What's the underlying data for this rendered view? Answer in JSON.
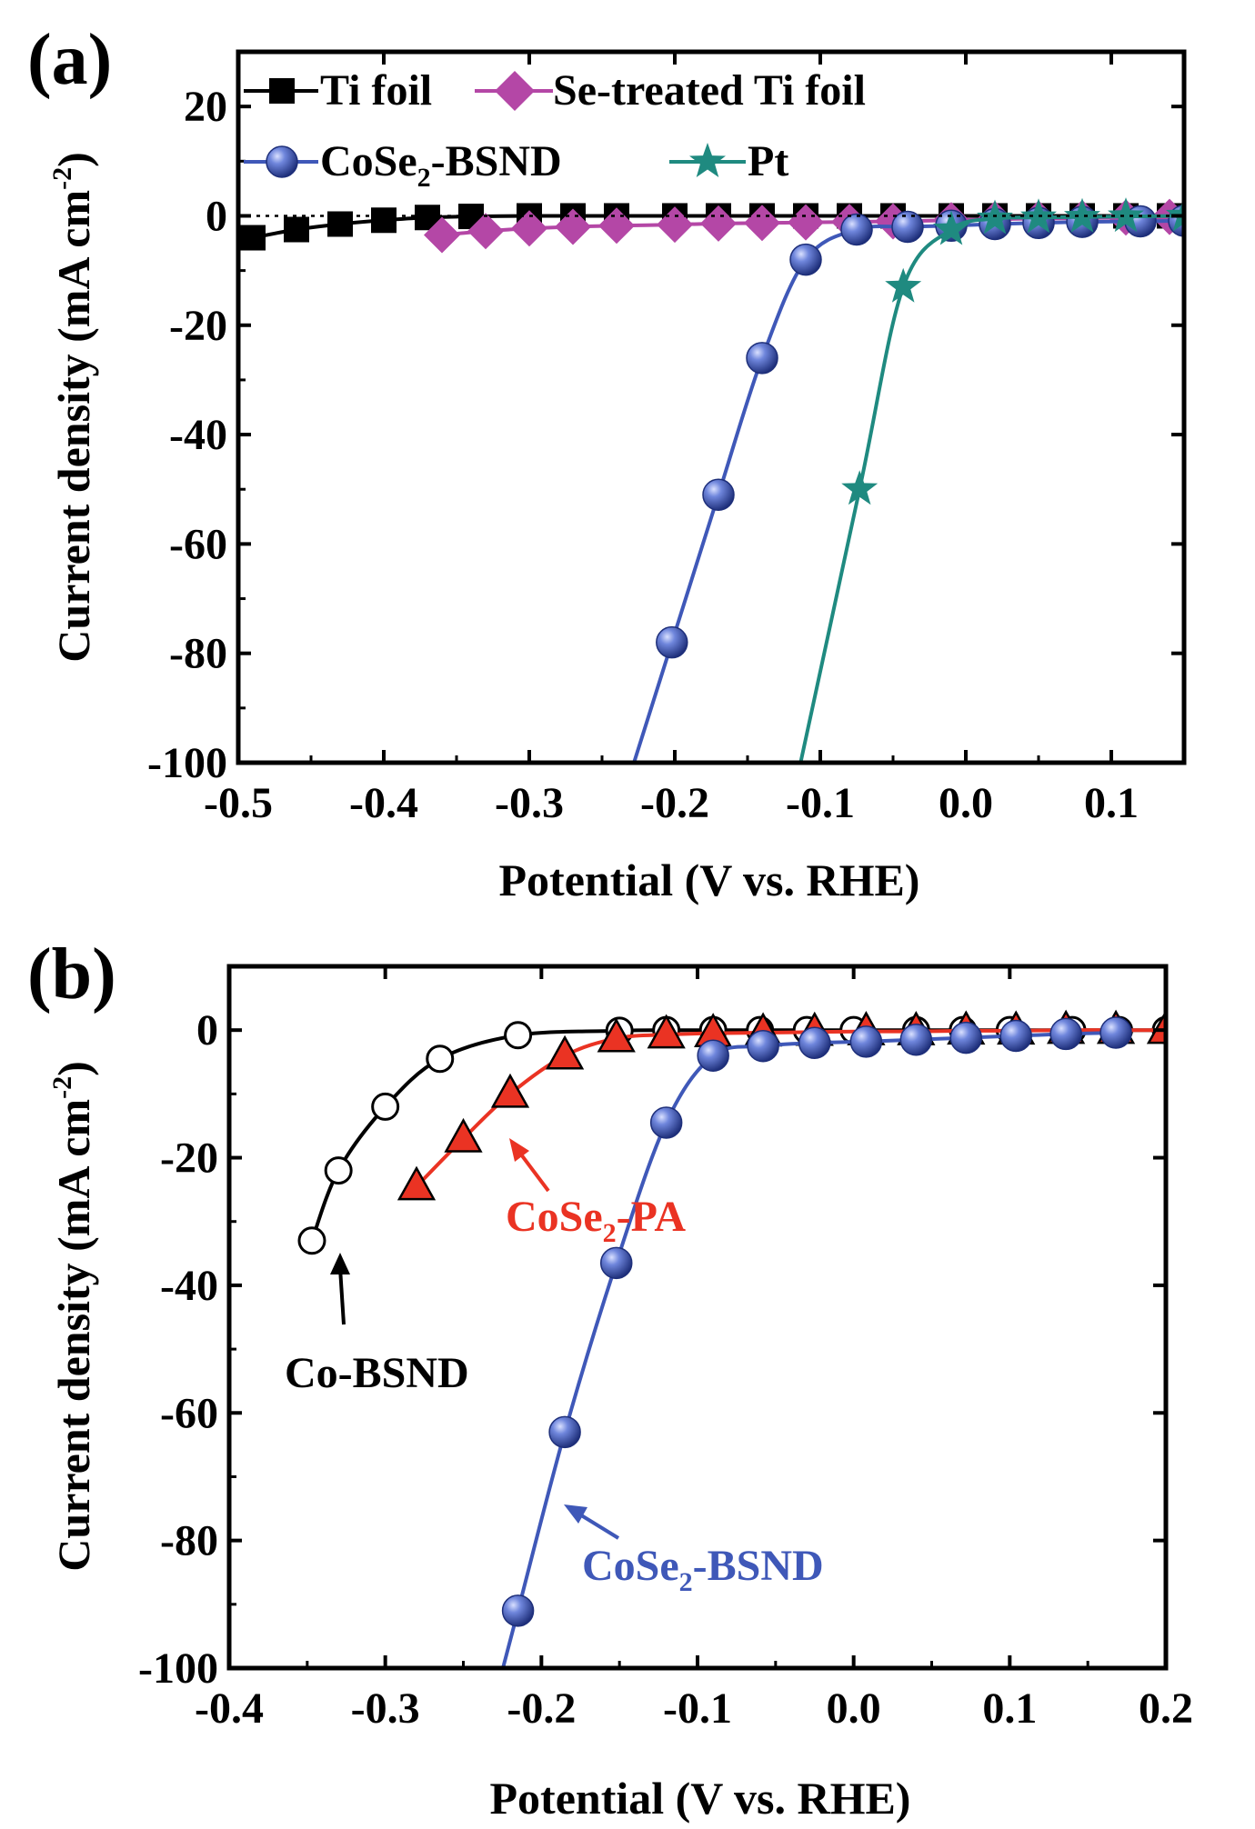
{
  "chart_data": [
    {
      "panel_label": "(a)",
      "type": "line",
      "xlabel": "Potential (V vs. RHE)",
      "ylabel": "Current density (mA cm",
      "ylabel_sup": "-2",
      "ylabel_close": ")",
      "xlim": [
        -0.5,
        0.15
      ],
      "ylim": [
        -100,
        30
      ],
      "xticks": [
        -0.5,
        -0.4,
        -0.3,
        -0.2,
        -0.1,
        0.0,
        0.1
      ],
      "xtick_labels": [
        "-0.5",
        "-0.4",
        "-0.3",
        "-0.2",
        "-0.1",
        "0.0",
        "0.1"
      ],
      "yticks": [
        20,
        0,
        -20,
        -40,
        -60,
        -80,
        -100
      ],
      "ytick_labels": [
        "20",
        "0",
        "-20",
        "-40",
        "-60",
        "-80",
        "-100"
      ],
      "legend_position": "top",
      "series": [
        {
          "name": "Ti foil",
          "color": "#000000",
          "marker": "square",
          "legend_parts": [
            "Ti foil"
          ],
          "x": [
            -0.49,
            -0.46,
            -0.43,
            -0.4,
            -0.37,
            -0.34,
            -0.3,
            -0.27,
            -0.24,
            -0.2,
            -0.17,
            -0.14,
            -0.11,
            -0.08,
            -0.05,
            -0.01,
            0.02,
            0.05,
            0.08,
            0.11,
            0.14
          ],
          "y": [
            -4,
            -2.5,
            -1.5,
            -0.8,
            -0.3,
            -0.1,
            0,
            0,
            0,
            0,
            0,
            0,
            0,
            0,
            0,
            0,
            0,
            0,
            0,
            0,
            0
          ]
        },
        {
          "name": "Se-treated Ti foil",
          "color": "#b447a6",
          "marker": "diamond",
          "legend_parts": [
            "Se-treated Ti foil"
          ],
          "x": [
            -0.36,
            -0.33,
            -0.3,
            -0.27,
            -0.24,
            -0.2,
            -0.17,
            -0.14,
            -0.11,
            -0.08,
            -0.05,
            -0.01,
            0.02,
            0.05,
            0.08,
            0.11,
            0.14
          ],
          "y": [
            -3.5,
            -2.8,
            -2.3,
            -2,
            -1.8,
            -1.6,
            -1.4,
            -1.3,
            -1.2,
            -1.1,
            -1,
            -0.8,
            -0.6,
            -0.5,
            -0.4,
            -0.3,
            -0.2
          ]
        },
        {
          "name": "CoSe2-BSND",
          "color": "#3f58b8",
          "marker": "sphere",
          "legend_parts": [
            "CoSe",
            "2",
            "-BSND"
          ],
          "x": [
            -0.202,
            -0.17,
            -0.14,
            -0.11,
            -0.075,
            -0.04,
            -0.01,
            0.02,
            0.05,
            0.08,
            0.12,
            0.15
          ],
          "y": [
            -78,
            -51,
            -26,
            -8,
            -2.5,
            -2,
            -1.8,
            -1.5,
            -1.3,
            -1.1,
            -1,
            -0.9
          ]
        },
        {
          "name": "Pt",
          "color": "#1f8a80",
          "marker": "star",
          "legend_parts": [
            "Pt"
          ],
          "x": [
            -0.073,
            -0.043,
            -0.01,
            0.02,
            0.05,
            0.08,
            0.11,
            0.15
          ],
          "y": [
            -50,
            -13,
            -2.5,
            -0.5,
            -0.3,
            -0.2,
            -0.1,
            0
          ]
        }
      ]
    },
    {
      "panel_label": "(b)",
      "type": "line",
      "xlabel": "Potential (V vs. RHE)",
      "ylabel": "Current density (mA cm",
      "ylabel_sup": "-2",
      "ylabel_close": ")",
      "xlim": [
        -0.4,
        0.2
      ],
      "ylim": [
        -100,
        10
      ],
      "xticks": [
        -0.4,
        -0.3,
        -0.2,
        -0.1,
        0.0,
        0.1,
        0.2
      ],
      "xtick_labels": [
        "-0.4",
        "-0.3",
        "-0.2",
        "-0.1",
        "0.0",
        "0.1",
        "0.2"
      ],
      "yticks": [
        0,
        -20,
        -40,
        -60,
        -80,
        -100
      ],
      "ytick_labels": [
        "0",
        "-20",
        "-40",
        "-60",
        "-80",
        "-100"
      ],
      "series": [
        {
          "name": "Co-BSND",
          "color": "#000000",
          "marker": "open-circle",
          "x": [
            -0.347,
            -0.33,
            -0.3,
            -0.265,
            -0.215,
            -0.15,
            -0.12,
            -0.09,
            -0.06,
            -0.03,
            0.0,
            0.04,
            0.07,
            0.1,
            0.14,
            0.17,
            0.2
          ],
          "y": [
            -33,
            -22,
            -12,
            -4.5,
            -0.8,
            -0.1,
            0,
            0,
            0,
            0,
            0,
            0,
            0,
            0,
            0,
            0,
            0
          ],
          "label": "Co-BSND"
        },
        {
          "name": "CoSe2-PA",
          "color": "#ea3323",
          "marker": "triangle",
          "x": [
            -0.28,
            -0.25,
            -0.22,
            -0.185,
            -0.152,
            -0.12,
            -0.09,
            -0.058,
            -0.025,
            0.008,
            0.04,
            0.072,
            0.104,
            0.136,
            0.168,
            0.2
          ],
          "y": [
            -24.5,
            -17,
            -10,
            -4,
            -1.3,
            -0.7,
            -0.5,
            -0.4,
            -0.3,
            -0.2,
            -0.2,
            -0.1,
            -0.1,
            0,
            0,
            0
          ],
          "label_parts": [
            "CoSe",
            "2",
            "-PA"
          ]
        },
        {
          "name": "CoSe2-BSND",
          "color": "#3f58b8",
          "marker": "sphere",
          "x": [
            -0.215,
            -0.185,
            -0.152,
            -0.12,
            -0.09,
            -0.058,
            -0.025,
            0.008,
            0.04,
            0.072,
            0.104,
            0.136,
            0.168
          ],
          "y": [
            -91,
            -63,
            -36.5,
            -14.5,
            -4,
            -2.5,
            -2,
            -1.8,
            -1.5,
            -1.2,
            -0.9,
            -0.6,
            -0.4
          ],
          "label_parts": [
            "CoSe",
            "2",
            "-BSND"
          ]
        }
      ]
    }
  ]
}
